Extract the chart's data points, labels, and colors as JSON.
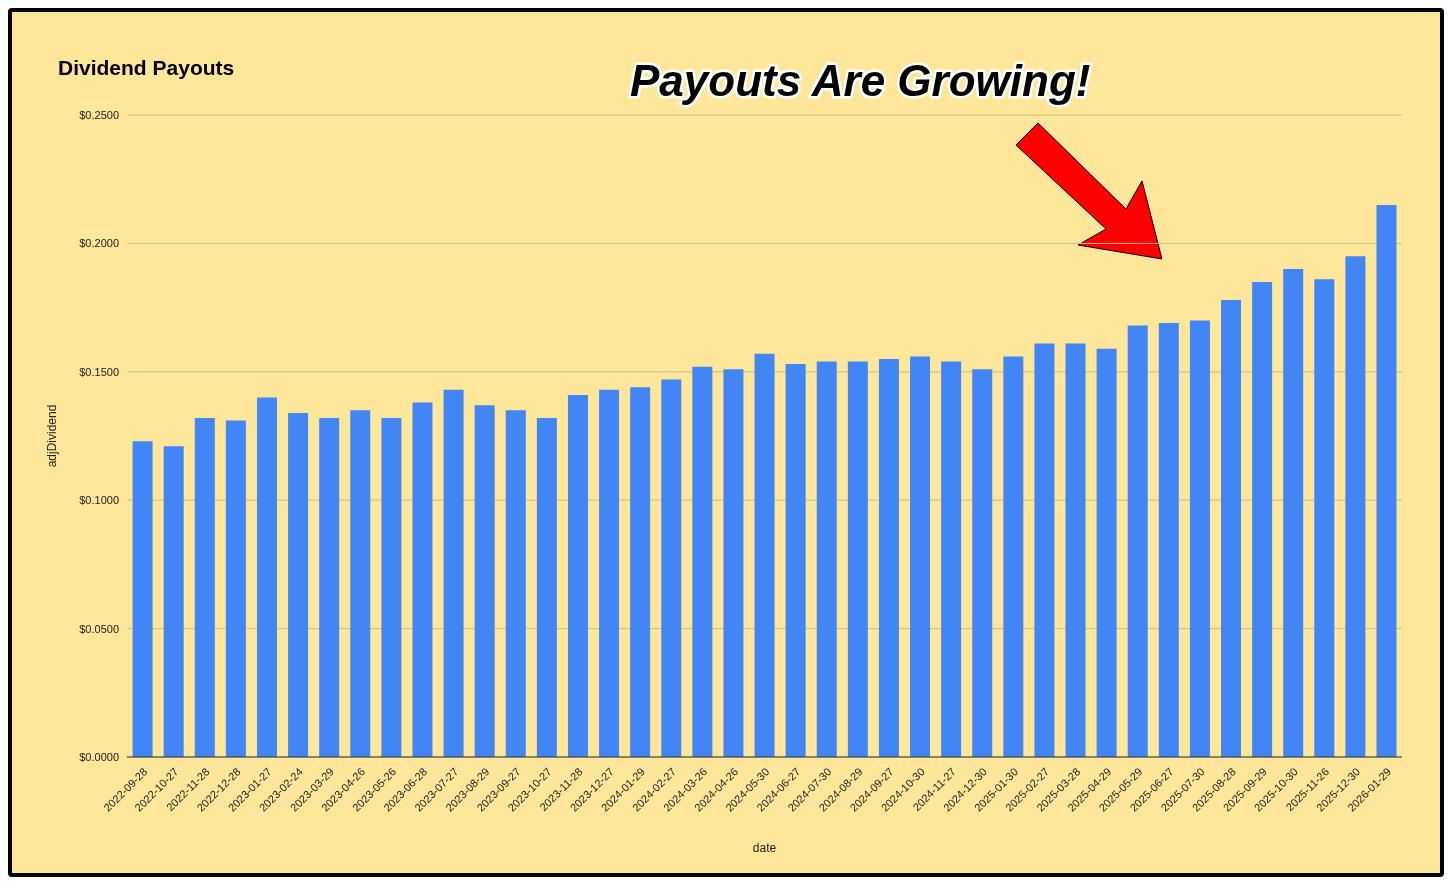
{
  "chart_data": {
    "type": "bar",
    "title": "Dividend Payouts",
    "xlabel": "date",
    "ylabel": "adjDividend",
    "annotations": [
      "Payouts Are Growing!"
    ],
    "categories": [
      "2022-09-28",
      "2022-10-27",
      "2022-11-28",
      "2022-12-28",
      "2023-01-27",
      "2023-02-24",
      "2023-03-29",
      "2023-04-26",
      "2023-05-26",
      "2023-06-28",
      "2023-07-27",
      "2023-08-29",
      "2023-09-27",
      "2023-10-27",
      "2023-11-28",
      "2023-12-27",
      "2024-01-29",
      "2024-02-27",
      "2024-03-26",
      "2024-04-26",
      "2024-05-30",
      "2024-06-27",
      "2024-07-30",
      "2024-08-29",
      "2024-09-27",
      "2024-10-30",
      "2024-11-27",
      "2024-12-30",
      "2025-01-30",
      "2025-02-27",
      "2025-03-28",
      "2025-04-29",
      "2025-05-29",
      "2025-06-27",
      "2025-07-30",
      "2025-08-28",
      "2025-09-29",
      "2025-10-30",
      "2025-11-26",
      "2025-12-30",
      "2026-01-29"
    ],
    "values": [
      0.123,
      0.121,
      0.132,
      0.131,
      0.14,
      0.134,
      0.132,
      0.135,
      0.132,
      0.138,
      0.143,
      0.137,
      0.135,
      0.132,
      0.141,
      0.143,
      0.144,
      0.147,
      0.152,
      0.151,
      0.157,
      0.153,
      0.154,
      0.154,
      0.155,
      0.156,
      0.154,
      0.151,
      0.156,
      0.161,
      0.161,
      0.159,
      0.168,
      0.169,
      0.17,
      0.178,
      0.185,
      0.19,
      0.186,
      0.195,
      0.215
    ],
    "color": "#4285f4",
    "ylim": [
      0,
      0.25
    ],
    "yticks": [
      {
        "value": 0,
        "label": "$0.0000"
      },
      {
        "value": 0.05,
        "label": "$0.0500"
      },
      {
        "value": 0.1,
        "label": "$0.1000"
      },
      {
        "value": 0.15,
        "label": "$0.1500"
      },
      {
        "value": 0.2,
        "label": "$0.2000"
      },
      {
        "value": 0.25,
        "label": "$0.2500"
      }
    ],
    "grid": "y"
  }
}
